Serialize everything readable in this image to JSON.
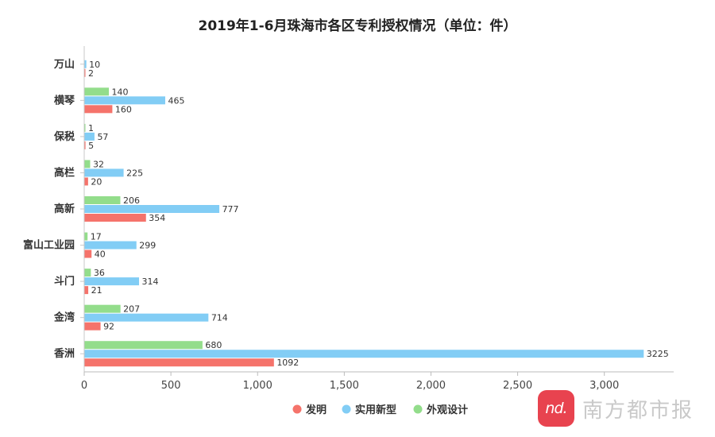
{
  "chart_data": {
    "type": "bar",
    "orientation": "horizontal",
    "title": "2019年1-6月珠海市各区专利授权情况（单位：件）",
    "categories": [
      "香洲",
      "金湾",
      "斗门",
      "富山工业园",
      "高新",
      "高栏",
      "保税",
      "横琴",
      "万山"
    ],
    "series": [
      {
        "name": "发明",
        "color": "#f5736b",
        "values": [
          1092,
          92,
          21,
          40,
          354,
          20,
          5,
          160,
          2
        ]
      },
      {
        "name": "实用新型",
        "color": "#82cdf5",
        "values": [
          3225,
          714,
          314,
          299,
          777,
          225,
          57,
          465,
          10
        ]
      },
      {
        "name": "外观设计",
        "color": "#93dd8b",
        "values": [
          680,
          207,
          36,
          17,
          206,
          32,
          1,
          140,
          null
        ]
      }
    ],
    "x_ticks": [
      0,
      500,
      1000,
      1500,
      2000,
      2500,
      3000
    ],
    "x_tick_labels": [
      "0",
      "500",
      "1,000",
      "1,500",
      "2,000",
      "2,500",
      "3,000"
    ],
    "xlim": [
      0,
      3400
    ],
    "grid": false,
    "legend_position": "bottom"
  },
  "watermark": {
    "logo_text": "nd.",
    "name": "南方都市报"
  }
}
